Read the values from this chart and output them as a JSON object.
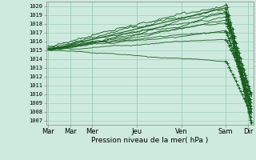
{
  "xlabel": "Pression niveau de la mer( hPa )",
  "ylim": [
    1006.5,
    1020.5
  ],
  "yticks": [
    1007,
    1008,
    1009,
    1010,
    1011,
    1012,
    1013,
    1014,
    1015,
    1016,
    1017,
    1018,
    1019,
    1020
  ],
  "xtick_labels": [
    "Mar",
    "Mar",
    "Mer",
    "Jeu",
    "Ven",
    "Sam",
    "Dir"
  ],
  "xtick_positions": [
    0,
    24,
    48,
    96,
    144,
    192,
    216
  ],
  "background_color": "#ceeade",
  "grid_color": "#9ecfb8",
  "line_color": "#1a5c20",
  "total_hours": 220,
  "n_lines": 11
}
